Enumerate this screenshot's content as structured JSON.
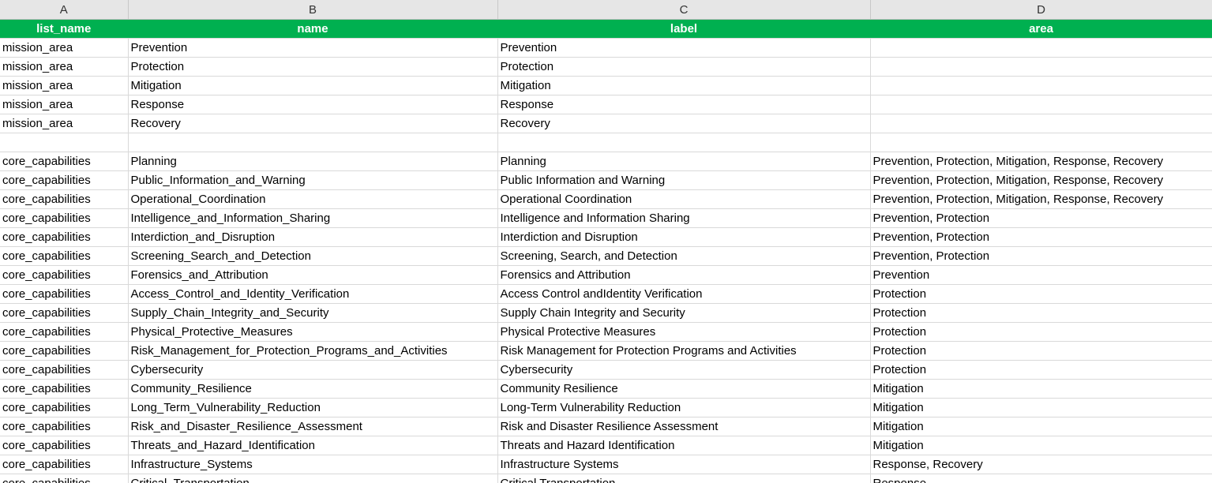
{
  "columns": [
    "A",
    "B",
    "C",
    "D"
  ],
  "header": [
    "list_name",
    "name",
    "label",
    "area"
  ],
  "groups": [
    [
      [
        "mission_area",
        "Prevention",
        "Prevention"
      ],
      [
        "mission_area",
        "Protection",
        "Protection"
      ],
      [
        "mission_area",
        "Mitigation",
        "Mitigation"
      ],
      [
        "mission_area",
        "Response",
        "Response"
      ],
      [
        "mission_area",
        "Recovery",
        "Recovery"
      ]
    ],
    [
      [
        "core_capabilities",
        "Planning",
        "Planning",
        "Prevention, Protection, Mitigation, Response, Recovery"
      ],
      [
        "core_capabilities",
        "Public_Information_and_Warning",
        "Public Information and Warning",
        "Prevention, Protection, Mitigation, Response, Recovery"
      ],
      [
        "core_capabilities",
        "Operational_Coordination",
        "Operational Coordination",
        "Prevention, Protection, Mitigation, Response, Recovery"
      ],
      [
        "core_capabilities",
        "Intelligence_and_Information_Sharing",
        "Intelligence and Information Sharing",
        "Prevention, Protection"
      ],
      [
        "core_capabilities",
        "Interdiction_and_Disruption",
        "Interdiction and Disruption",
        "Prevention, Protection"
      ],
      [
        "core_capabilities",
        "Screening_Search_and_Detection",
        "Screening, Search, and Detection",
        "Prevention, Protection"
      ],
      [
        "core_capabilities",
        "Forensics_and_Attribution",
        "Forensics and Attribution",
        "Prevention"
      ],
      [
        "core_capabilities",
        "Access_Control_and_Identity_Verification",
        "Access Control andIdentity Verification",
        "Protection"
      ],
      [
        "core_capabilities",
        "Supply_Chain_Integrity_and_Security",
        "Supply Chain Integrity and Security",
        "Protection"
      ],
      [
        "core_capabilities",
        "Physical_Protective_Measures",
        "Physical Protective Measures",
        "Protection"
      ],
      [
        "core_capabilities",
        "Risk_Management_for_Protection_Programs_and_Activities",
        "Risk Management for Protection Programs and Activities",
        "Protection"
      ],
      [
        "core_capabilities",
        "Cybersecurity",
        "Cybersecurity",
        "Protection"
      ],
      [
        "core_capabilities",
        "Community_Resilience",
        "Community Resilience",
        "Mitigation"
      ],
      [
        "core_capabilities",
        "Long_Term_Vulnerability_Reduction",
        "Long-Term Vulnerability Reduction",
        "Mitigation"
      ],
      [
        "core_capabilities",
        "Risk_and_Disaster_Resilience_Assessment",
        "Risk and Disaster Resilience Assessment",
        "Mitigation"
      ],
      [
        "core_capabilities",
        "Threats_and_Hazard_Identification",
        "Threats and Hazard Identification",
        "Mitigation"
      ],
      [
        "core_capabilities",
        "Infrastructure_Systems",
        "Infrastructure Systems",
        "Response, Recovery"
      ],
      [
        "core_capabilities",
        "Critical_Transportation",
        "Critical Transportation",
        "Response"
      ]
    ]
  ]
}
